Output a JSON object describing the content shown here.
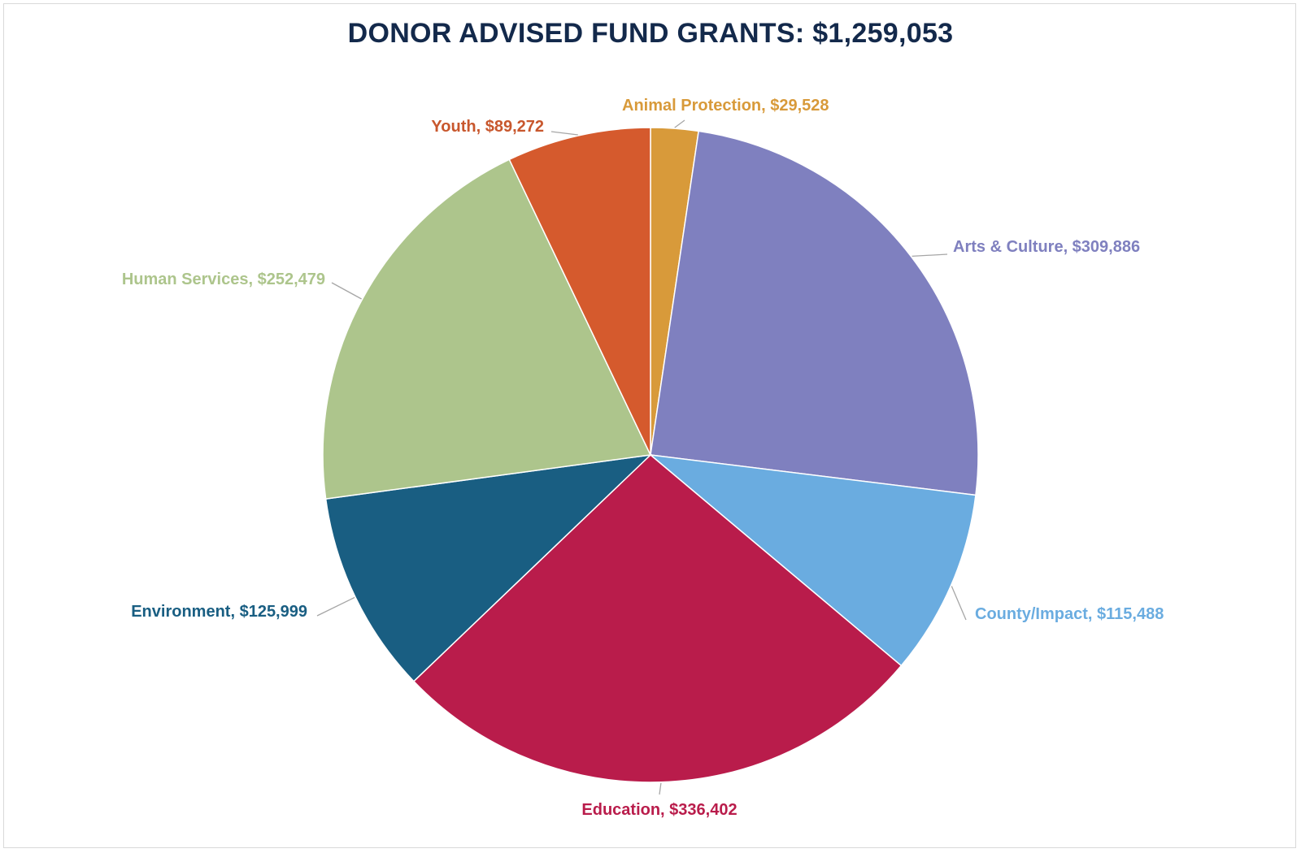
{
  "chart_data": {
    "type": "pie",
    "title": "DONOR ADVISED FUND GRANTS: $1,259,053",
    "start_angle_deg": 0,
    "direction": "clockwise",
    "slices": [
      {
        "name": "Animal Protection",
        "value": 29528,
        "value_label": "$29,528",
        "color": "#d89a3a"
      },
      {
        "name": "Arts & Culture",
        "value": 309886,
        "value_label": "$309,886",
        "color": "#7f80bf"
      },
      {
        "name": "County/Impact",
        "value": 115488,
        "value_label": "$115,488",
        "color": "#6aace0"
      },
      {
        "name": "Education",
        "value": 336402,
        "value_label": "$336,402",
        "color": "#b91c4b"
      },
      {
        "name": "Environment",
        "value": 125999,
        "value_label": "$125,999",
        "color": "#195e82"
      },
      {
        "name": "Human Services",
        "value": 252479,
        "value_label": "$252,479",
        "color": "#adc58c"
      },
      {
        "name": "Youth",
        "value": 89272,
        "value_label": "$89,272",
        "color": "#d55a2d"
      }
    ],
    "label_colors": {
      "Animal Protection": "#d89a3a",
      "Arts & Culture": "#7f80bf",
      "County/Impact": "#6aace0",
      "Education": "#b91c4b",
      "Environment": "#195e82",
      "Human Services": "#adc58c",
      "Youth": "#c8572d"
    },
    "leader_line_color": "#a6a6a6",
    "title_color": "#13294b"
  }
}
